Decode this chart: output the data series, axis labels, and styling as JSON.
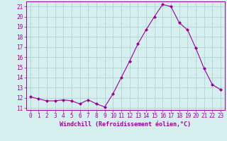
{
  "x": [
    0,
    1,
    2,
    3,
    4,
    5,
    6,
    7,
    8,
    9,
    10,
    11,
    12,
    13,
    14,
    15,
    16,
    17,
    18,
    19,
    20,
    21,
    22,
    23
  ],
  "y": [
    12.1,
    11.9,
    11.7,
    11.7,
    11.8,
    11.7,
    11.4,
    11.8,
    11.4,
    11.1,
    12.4,
    14.0,
    15.6,
    17.3,
    18.7,
    20.0,
    21.2,
    21.0,
    19.4,
    18.7,
    16.9,
    14.9,
    13.3,
    12.8
  ],
  "line_color": "#990099",
  "marker": "D",
  "marker_size": 2.0,
  "bg_color": "#d5efee",
  "grid_color": "#aacccc",
  "xlabel": "Windchill (Refroidissement éolien,°C)",
  "xlabel_color": "#990099",
  "tick_color": "#990099",
  "spine_color": "#990099",
  "ylim": [
    10.8,
    21.5
  ],
  "xlim": [
    -0.5,
    23.5
  ],
  "yticks": [
    11,
    12,
    13,
    14,
    15,
    16,
    17,
    18,
    19,
    20,
    21
  ],
  "xticks": [
    0,
    1,
    2,
    3,
    4,
    5,
    6,
    7,
    8,
    9,
    10,
    11,
    12,
    13,
    14,
    15,
    16,
    17,
    18,
    19,
    20,
    21,
    22,
    23
  ],
  "tick_fontsize": 5.5,
  "xlabel_fontsize": 6.0
}
